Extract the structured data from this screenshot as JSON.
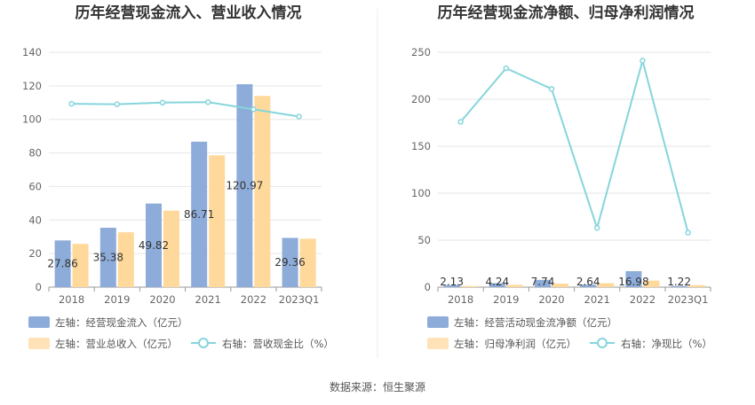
{
  "source_label": "数据来源：恒生聚源",
  "colors": {
    "bar_primary": "#8eacd9",
    "bar_secondary": "#ffd99c",
    "line": "#86d5dc",
    "grid": "#e6e6e6",
    "axis": "#999999"
  },
  "chart_data": [
    {
      "type": "bar",
      "title": "历年经营现金流入、营业收入情况",
      "categories": [
        "2018",
        "2019",
        "2020",
        "2021",
        "2022",
        "2023Q1"
      ],
      "y_ticks": [
        "0",
        "20",
        "40",
        "60",
        "80",
        "100",
        "120",
        "140"
      ],
      "ylim": [
        0,
        140
      ],
      "y2lim": [
        0,
        140
      ],
      "series": [
        {
          "name": "左轴：经营现金流入（亿元）",
          "kind": "bar",
          "values": [
            27.86,
            35.38,
            49.82,
            86.71,
            120.97,
            29.36
          ],
          "labels": [
            "27.86",
            "35.38",
            "49.82",
            "86.71",
            "120.97",
            "29.36"
          ]
        },
        {
          "name": "左轴：营业总收入（亿元）",
          "kind": "bar",
          "values": [
            25.8,
            32.7,
            45.6,
            78.6,
            114.0,
            28.9
          ]
        },
        {
          "name": "右轴：营收现金比（%）",
          "kind": "line",
          "axis": "right",
          "values": [
            109.3,
            109.0,
            110.0,
            110.3,
            106.0,
            101.7
          ]
        }
      ]
    },
    {
      "type": "bar",
      "title": "历年经营现金流净额、归母净利润情况",
      "categories": [
        "2018",
        "2019",
        "2020",
        "2021",
        "2022",
        "2023Q1"
      ],
      "y_ticks": [
        "0",
        "50",
        "100",
        "150",
        "200",
        "250"
      ],
      "ylim": [
        0,
        250
      ],
      "y2lim": [
        0,
        250
      ],
      "series": [
        {
          "name": "左轴：经营活动现金流净额（亿元）",
          "kind": "bar",
          "values": [
            2.13,
            4.24,
            7.74,
            2.64,
            16.98,
            1.22
          ],
          "labels": [
            "2.13",
            "4.24",
            "7.74",
            "2.64",
            "16.98",
            "1.22"
          ]
        },
        {
          "name": "左轴：归母净利润（亿元）",
          "kind": "bar",
          "values": [
            1.2,
            2.4,
            3.7,
            4.2,
            7.0,
            2.1
          ]
        },
        {
          "name": "右轴：净现比（%）",
          "kind": "line",
          "axis": "right",
          "values": [
            176.0,
            233.0,
            211.0,
            63.0,
            241.0,
            58.0
          ]
        }
      ]
    }
  ]
}
